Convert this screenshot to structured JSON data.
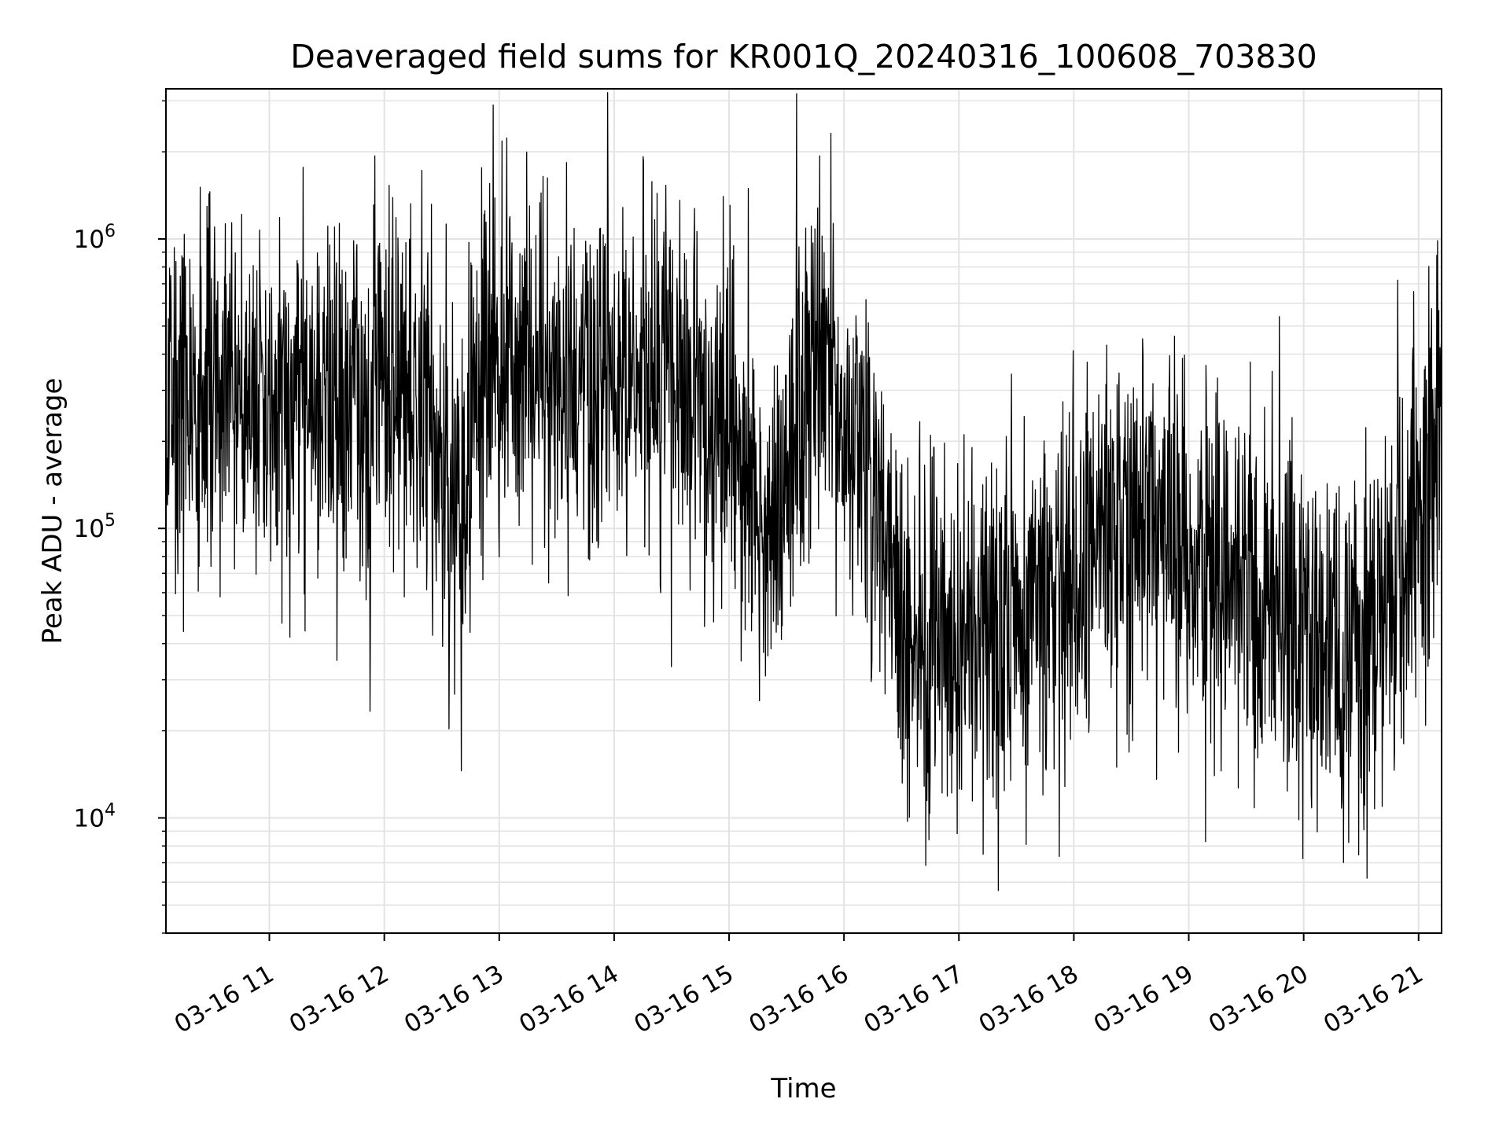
{
  "chart_data": {
    "type": "line",
    "title": "Deaveraged field sums for KR001Q_20240316_100608_703830",
    "xlabel": "Time",
    "ylabel": "Peak ADU - average",
    "y_scale": "log",
    "ylim": [
      4000,
      3300000
    ],
    "xlim": [
      "2024-03-16 10:06",
      "2024-03-16 21:12"
    ],
    "x_tick_labels": [
      "03-16 11",
      "03-16 12",
      "03-16 13",
      "03-16 14",
      "03-16 15",
      "03-16 16",
      "03-16 17",
      "03-16 18",
      "03-16 19",
      "03-16 20",
      "03-16 21"
    ],
    "x_tick_times": [
      "2024-03-16 11:00",
      "2024-03-16 12:00",
      "2024-03-16 13:00",
      "2024-03-16 14:00",
      "2024-03-16 15:00",
      "2024-03-16 16:00",
      "2024-03-16 17:00",
      "2024-03-16 18:00",
      "2024-03-16 19:00",
      "2024-03-16 20:00",
      "2024-03-16 21:00"
    ],
    "y_tick_labels": [
      {
        "base": "10",
        "exp": "4"
      },
      {
        "base": "10",
        "exp": "5"
      },
      {
        "base": "10",
        "exp": "6"
      }
    ],
    "grid": true,
    "line_color": "#000000",
    "series": [
      {
        "x": [
          "2024-03-16 10:06",
          "2024-03-16 10:30",
          "2024-03-16 11:00",
          "2024-03-16 11:30",
          "2024-03-16 12:00",
          "2024-03-16 12:15",
          "2024-03-16 12:30",
          "2024-03-16 12:40",
          "2024-03-16 12:50",
          "2024-03-16 13:00",
          "2024-03-16 13:30",
          "2024-03-16 14:00",
          "2024-03-16 14:30",
          "2024-03-16 15:00",
          "2024-03-16 15:15",
          "2024-03-16 15:30",
          "2024-03-16 15:45",
          "2024-03-16 16:00",
          "2024-03-16 16:15",
          "2024-03-16 16:30",
          "2024-03-16 17:00",
          "2024-03-16 17:30",
          "2024-03-16 18:00",
          "2024-03-16 18:30",
          "2024-03-16 19:00",
          "2024-03-16 19:30",
          "2024-03-16 20:00",
          "2024-03-16 20:30",
          "2024-03-16 21:00",
          "2024-03-16 21:12"
        ],
        "values": [
          250000,
          300000,
          280000,
          260000,
          300000,
          330000,
          140000,
          90000,
          380000,
          400000,
          380000,
          350000,
          300000,
          200000,
          110000,
          150000,
          420000,
          220000,
          150000,
          45000,
          40000,
          45000,
          70000,
          110000,
          90000,
          60000,
          45000,
          35000,
          100000,
          250000
        ]
      }
    ]
  }
}
